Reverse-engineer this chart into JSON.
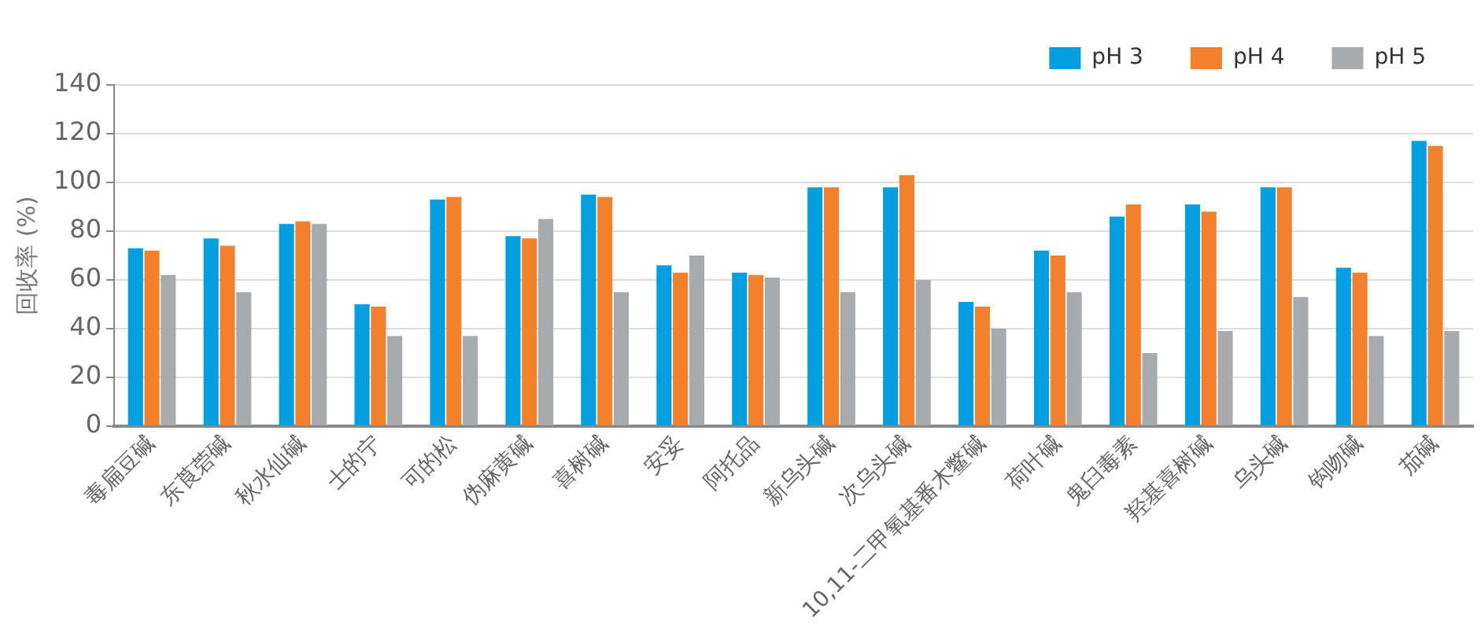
{
  "chart_data": {
    "type": "bar",
    "ylabel": "回收率 (%)",
    "categories": [
      "毒扁豆碱",
      "东莨菪碱",
      "秋水仙碱",
      "士的宁",
      "可的松",
      "伪麻黄碱",
      "喜树碱",
      "安妥",
      "阿托品",
      "新乌头碱",
      "次乌头碱",
      "10,11-二甲氧基番木鳖碱",
      "荷叶碱",
      "鬼臼毒素",
      "羟基喜树碱",
      "乌头碱",
      "钩吻碱",
      "茄碱"
    ],
    "series": [
      {
        "name": "pH 3",
        "color": "#039fe0",
        "values": [
          73,
          77,
          83,
          50,
          93,
          78,
          95,
          66,
          63,
          98,
          98,
          51,
          72,
          86,
          91,
          98,
          65,
          117
        ]
      },
      {
        "name": "pH 4",
        "color": "#f3812b",
        "values": [
          72,
          74,
          84,
          49,
          94,
          77,
          94,
          63,
          62,
          98,
          103,
          49,
          70,
          91,
          88,
          98,
          63,
          115
        ]
      },
      {
        "name": "pH 5",
        "color": "#a8abad",
        "values": [
          62,
          55,
          83,
          37,
          37,
          85,
          55,
          70,
          61,
          55,
          60,
          40,
          55,
          30,
          39,
          53,
          37,
          39
        ]
      }
    ],
    "ylim": [
      0,
      140
    ],
    "yticks": [
      0,
      20,
      40,
      60,
      80,
      100,
      120,
      140
    ],
    "grid": "y",
    "legend": "top right"
  }
}
